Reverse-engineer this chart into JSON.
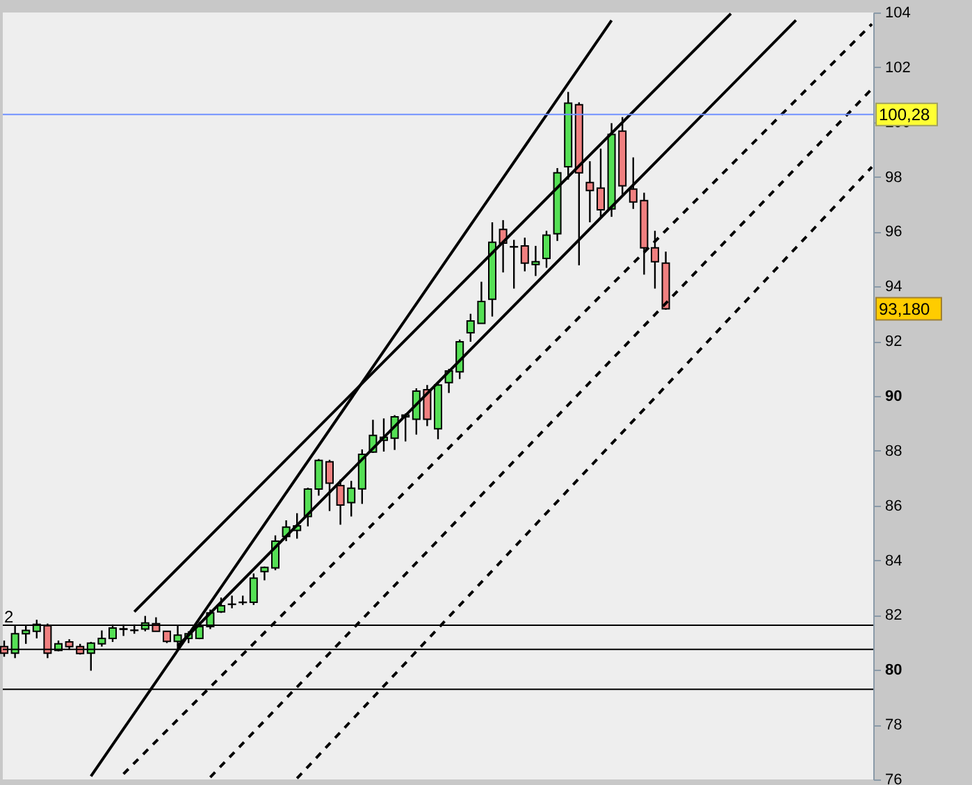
{
  "chart_data": {
    "type": "candlestick",
    "categories": [
      null,
      null,
      null,
      null,
      null,
      null,
      null,
      null,
      null,
      null,
      null,
      null,
      null,
      null,
      null,
      null,
      null,
      null,
      null,
      null,
      null,
      null,
      null,
      null,
      null,
      null,
      null,
      null,
      null,
      null,
      null,
      null,
      null,
      null,
      null,
      null,
      null,
      null,
      null,
      null,
      null,
      null,
      null,
      null,
      null,
      null,
      null,
      null,
      null,
      null,
      null,
      null,
      null,
      null,
      null,
      null,
      null,
      null,
      null,
      null,
      null,
      null,
      null,
      null,
      null,
      null,
      null,
      null,
      null,
      null,
      null,
      null,
      null,
      null,
      null,
      null,
      null,
      null,
      null,
      null,
      null
    ],
    "ohlc": [
      [
        80.85,
        81.07,
        80.48,
        80.61
      ],
      [
        80.61,
        81.61,
        80.43,
        81.32
      ],
      [
        81.32,
        81.61,
        80.95,
        81.44
      ],
      [
        81.41,
        81.83,
        81.15,
        81.66
      ],
      [
        81.61,
        81.69,
        80.43,
        80.61
      ],
      [
        80.71,
        81.07,
        80.68,
        80.95
      ],
      [
        81.02,
        81.12,
        80.73,
        80.85
      ],
      [
        80.85,
        80.95,
        80.56,
        80.6
      ],
      [
        80.61,
        81.02,
        79.97,
        80.98
      ],
      [
        80.95,
        81.44,
        80.85,
        81.15
      ],
      [
        81.15,
        81.66,
        81.02,
        81.53
      ],
      [
        81.5,
        81.66,
        81.24,
        81.48
      ],
      [
        81.44,
        81.66,
        81.32,
        81.45
      ],
      [
        81.49,
        81.97,
        81.41,
        81.71
      ],
      [
        81.69,
        81.92,
        81.41,
        81.41
      ],
      [
        81.41,
        81.41,
        80.98,
        81.04
      ],
      [
        81.04,
        81.61,
        80.73,
        81.27
      ],
      [
        81.15,
        81.41,
        80.98,
        81.32
      ],
      [
        81.15,
        81.75,
        81.12,
        81.58
      ],
      [
        81.58,
        82.2,
        81.49,
        82.08
      ],
      [
        82.12,
        82.64,
        82.08,
        82.34
      ],
      [
        82.39,
        82.71,
        82.25,
        82.4
      ],
      [
        82.46,
        82.71,
        82.37,
        82.47
      ],
      [
        82.47,
        83.52,
        82.37,
        83.35
      ],
      [
        83.59,
        83.77,
        83.27,
        83.74
      ],
      [
        83.72,
        84.91,
        83.64,
        84.7
      ],
      [
        84.87,
        85.46,
        84.7,
        85.21
      ],
      [
        85.09,
        85.72,
        84.79,
        85.26
      ],
      [
        85.6,
        86.65,
        85.24,
        86.6
      ],
      [
        86.6,
        87.7,
        86.36,
        87.65
      ],
      [
        87.6,
        87.67,
        85.8,
        86.82
      ],
      [
        86.73,
        86.95,
        85.3,
        86.02
      ],
      [
        86.11,
        86.9,
        85.6,
        86.63
      ],
      [
        86.61,
        88.05,
        86.06,
        87.87
      ],
      [
        87.95,
        89.13,
        87.92,
        88.56
      ],
      [
        88.38,
        89.18,
        87.97,
        88.49
      ],
      [
        88.46,
        89.3,
        88.03,
        89.24
      ],
      [
        89.24,
        89.36,
        88.34,
        89.3
      ],
      [
        89.15,
        90.28,
        88.59,
        90.18
      ],
      [
        90.23,
        90.4,
        88.9,
        89.15
      ],
      [
        88.8,
        90.46,
        88.42,
        90.4
      ],
      [
        90.49,
        90.99,
        90.11,
        90.91
      ],
      [
        90.88,
        92.06,
        90.62,
        91.98
      ],
      [
        92.31,
        93.0,
        91.98,
        92.74
      ],
      [
        92.65,
        94.17,
        92.65,
        93.45
      ],
      [
        93.53,
        96.34,
        92.9,
        95.61
      ],
      [
        96.08,
        96.42,
        94.51,
        95.58
      ],
      [
        95.44,
        95.7,
        93.92,
        95.45
      ],
      [
        95.48,
        95.78,
        94.55,
        94.85
      ],
      [
        94.8,
        95.48,
        94.38,
        94.9
      ],
      [
        95.02,
        96.03,
        94.68,
        95.87
      ],
      [
        95.92,
        98.32,
        95.66,
        98.15
      ],
      [
        98.37,
        101.1,
        97.9,
        100.69
      ],
      [
        100.63,
        100.72,
        94.77,
        98.15
      ],
      [
        97.79,
        98.57,
        96.34,
        97.5
      ],
      [
        97.59,
        99.03,
        96.54,
        96.8
      ],
      [
        96.83,
        99.96,
        96.54,
        99.55
      ],
      [
        99.67,
        100.18,
        97.3,
        97.67
      ],
      [
        97.55,
        98.71,
        96.83,
        97.08
      ],
      [
        97.13,
        97.42,
        94.43,
        95.41
      ],
      [
        95.41,
        96.03,
        93.92,
        94.9
      ],
      [
        94.85,
        95.27,
        93.15,
        93.18
      ],
      null,
      null,
      null,
      null,
      null,
      null,
      null,
      null,
      null,
      null,
      null,
      null,
      null,
      null,
      null,
      null,
      null,
      null,
      null
    ],
    "colors": [
      "#f08080",
      "#55e055",
      "#55e055",
      "#55e055",
      "#f08080",
      "#55e055",
      "#f08080",
      "#f08080",
      "#55e055",
      "#55e055",
      "#55e055",
      "#f08080",
      "#55e055",
      "#55e055",
      "#f08080",
      "#f08080",
      "#55e055",
      "#55e055",
      "#55e055",
      "#55e055",
      "#55e055",
      "#55e055",
      "#55e055",
      "#55e055",
      "#55e055",
      "#55e055",
      "#55e055",
      "#55e055",
      "#55e055",
      "#55e055",
      "#f08080",
      "#f08080",
      "#55e055",
      "#55e055",
      "#55e055",
      "#55e055",
      "#55e055",
      "#55e055",
      "#55e055",
      "#f08080",
      "#55e055",
      "#55e055",
      "#55e055",
      "#55e055",
      "#55e055",
      "#55e055",
      "#f08080",
      "#55e055",
      "#f08080",
      "#55e055",
      "#55e055",
      "#55e055",
      "#55e055",
      "#f08080",
      "#f08080",
      "#f08080",
      "#55e055",
      "#f08080",
      "#f08080",
      "#f08080",
      "#f08080",
      "#f08080",
      null,
      null,
      null,
      null,
      null,
      null,
      null,
      null,
      null,
      null,
      null,
      null,
      null,
      null,
      null,
      null,
      null,
      null,
      null
    ],
    "series": [
      {
        "type": "line",
        "color": "#000000",
        "line_style": "solid",
        "values": [
          null,
          null,
          null,
          null,
          null,
          null,
          null,
          null,
          76.12,
          null,
          null,
          null,
          null,
          null,
          null,
          null,
          null,
          null,
          null,
          null,
          null,
          null,
          null,
          null,
          null,
          null,
          null,
          null,
          null,
          null,
          null,
          null,
          null,
          null,
          null,
          null,
          null,
          null,
          null,
          null,
          null,
          null,
          null,
          null,
          null,
          null,
          null,
          null,
          null,
          null,
          null,
          null,
          null,
          null,
          null,
          null,
          103.71,
          null,
          null,
          null,
          null,
          null,
          null,
          null,
          null,
          null,
          null,
          null,
          null,
          null,
          null,
          null,
          null,
          null,
          null,
          null,
          null,
          null,
          null,
          null,
          null
        ]
      },
      {
        "type": "line",
        "color": "#000000",
        "line_style": "solid",
        "values": [
          null,
          null,
          null,
          null,
          null,
          null,
          null,
          null,
          null,
          null,
          null,
          null,
          82.12,
          null,
          null,
          null,
          null,
          null,
          null,
          null,
          null,
          null,
          null,
          null,
          null,
          null,
          null,
          null,
          null,
          null,
          null,
          null,
          null,
          null,
          null,
          null,
          null,
          null,
          null,
          null,
          null,
          null,
          null,
          null,
          null,
          null,
          null,
          null,
          null,
          null,
          null,
          null,
          null,
          null,
          null,
          null,
          null,
          null,
          null,
          null,
          null,
          null,
          null,
          null,
          null,
          null,
          null,
          103.96,
          null,
          null,
          null,
          null,
          null,
          null,
          null,
          null,
          null,
          null,
          null,
          null,
          null
        ]
      },
      {
        "type": "line",
        "color": "#000000",
        "line_style": "solid",
        "values": [
          null,
          null,
          null,
          null,
          null,
          null,
          null,
          null,
          null,
          null,
          null,
          null,
          null,
          null,
          null,
          null,
          80.87,
          null,
          null,
          null,
          null,
          null,
          null,
          null,
          null,
          null,
          null,
          null,
          null,
          null,
          null,
          null,
          null,
          null,
          null,
          null,
          null,
          null,
          null,
          null,
          null,
          null,
          null,
          null,
          null,
          null,
          null,
          null,
          null,
          null,
          null,
          null,
          null,
          null,
          null,
          null,
          null,
          null,
          null,
          null,
          null,
          null,
          null,
          null,
          null,
          null,
          null,
          null,
          null,
          null,
          null,
          null,
          null,
          103.72,
          null,
          null,
          null,
          null,
          null,
          null,
          null
        ]
      },
      {
        "type": "line",
        "color": "#000000",
        "line_style": "dashed",
        "values": [
          null,
          null,
          null,
          null,
          null,
          null,
          null,
          null,
          null,
          null,
          null,
          76.2,
          null,
          null,
          null,
          null,
          null,
          null,
          null,
          null,
          null,
          null,
          null,
          null,
          null,
          null,
          null,
          null,
          null,
          null,
          null,
          null,
          null,
          null,
          null,
          null,
          null,
          null,
          null,
          null,
          null,
          null,
          null,
          null,
          null,
          null,
          null,
          null,
          null,
          null,
          null,
          null,
          null,
          null,
          null,
          null,
          null,
          null,
          null,
          null,
          null,
          null,
          null,
          null,
          null,
          null,
          null,
          null,
          null,
          null,
          null,
          null,
          null,
          null,
          null,
          null,
          null,
          null,
          null,
          null,
          103.58
        ]
      },
      {
        "type": "line",
        "color": "#000000",
        "line_style": "dashed",
        "values": [
          null,
          null,
          null,
          null,
          null,
          null,
          null,
          null,
          null,
          null,
          null,
          null,
          null,
          null,
          null,
          null,
          null,
          null,
          null,
          76.08,
          null,
          null,
          null,
          null,
          null,
          null,
          null,
          null,
          null,
          null,
          null,
          null,
          null,
          null,
          null,
          null,
          null,
          null,
          null,
          null,
          null,
          null,
          null,
          null,
          null,
          null,
          null,
          null,
          null,
          null,
          null,
          null,
          null,
          null,
          null,
          null,
          null,
          null,
          null,
          null,
          null,
          null,
          null,
          null,
          null,
          null,
          null,
          null,
          null,
          null,
          null,
          null,
          null,
          null,
          null,
          null,
          null,
          null,
          null,
          null,
          101.21
        ]
      },
      {
        "type": "line",
        "color": "#000000",
        "line_style": "dashed",
        "values": [
          null,
          null,
          null,
          null,
          null,
          null,
          null,
          null,
          null,
          null,
          null,
          null,
          null,
          null,
          null,
          null,
          null,
          null,
          null,
          null,
          null,
          null,
          null,
          null,
          null,
          null,
          null,
          76.04,
          null,
          null,
          null,
          null,
          null,
          null,
          null,
          null,
          null,
          null,
          null,
          null,
          null,
          null,
          null,
          null,
          null,
          null,
          null,
          null,
          null,
          null,
          null,
          null,
          null,
          null,
          null,
          null,
          null,
          null,
          null,
          null,
          null,
          null,
          null,
          null,
          null,
          null,
          null,
          null,
          null,
          null,
          null,
          null,
          null,
          null,
          null,
          null,
          null,
          null,
          null,
          null,
          98.36
        ]
      }
    ],
    "ref_lines": [
      {
        "axis": "y",
        "value": 81.63,
        "color": "#000000"
      },
      {
        "axis": "y",
        "value": 80.75,
        "color": "#000000"
      },
      {
        "axis": "y",
        "value": 79.29,
        "color": "#000000"
      },
      {
        "axis": "y",
        "value": 100.28,
        "label": "100,28",
        "color": "#7090ff"
      }
    ],
    "annotations": [
      "2",
      "93,180"
    ],
    "ylim": [
      76,
      104
    ],
    "yticks": [
      76,
      78,
      80,
      82,
      84,
      86,
      88,
      90,
      92,
      94,
      96,
      98,
      100,
      102,
      104
    ],
    "tick_labels": "y",
    "grid": false
  }
}
